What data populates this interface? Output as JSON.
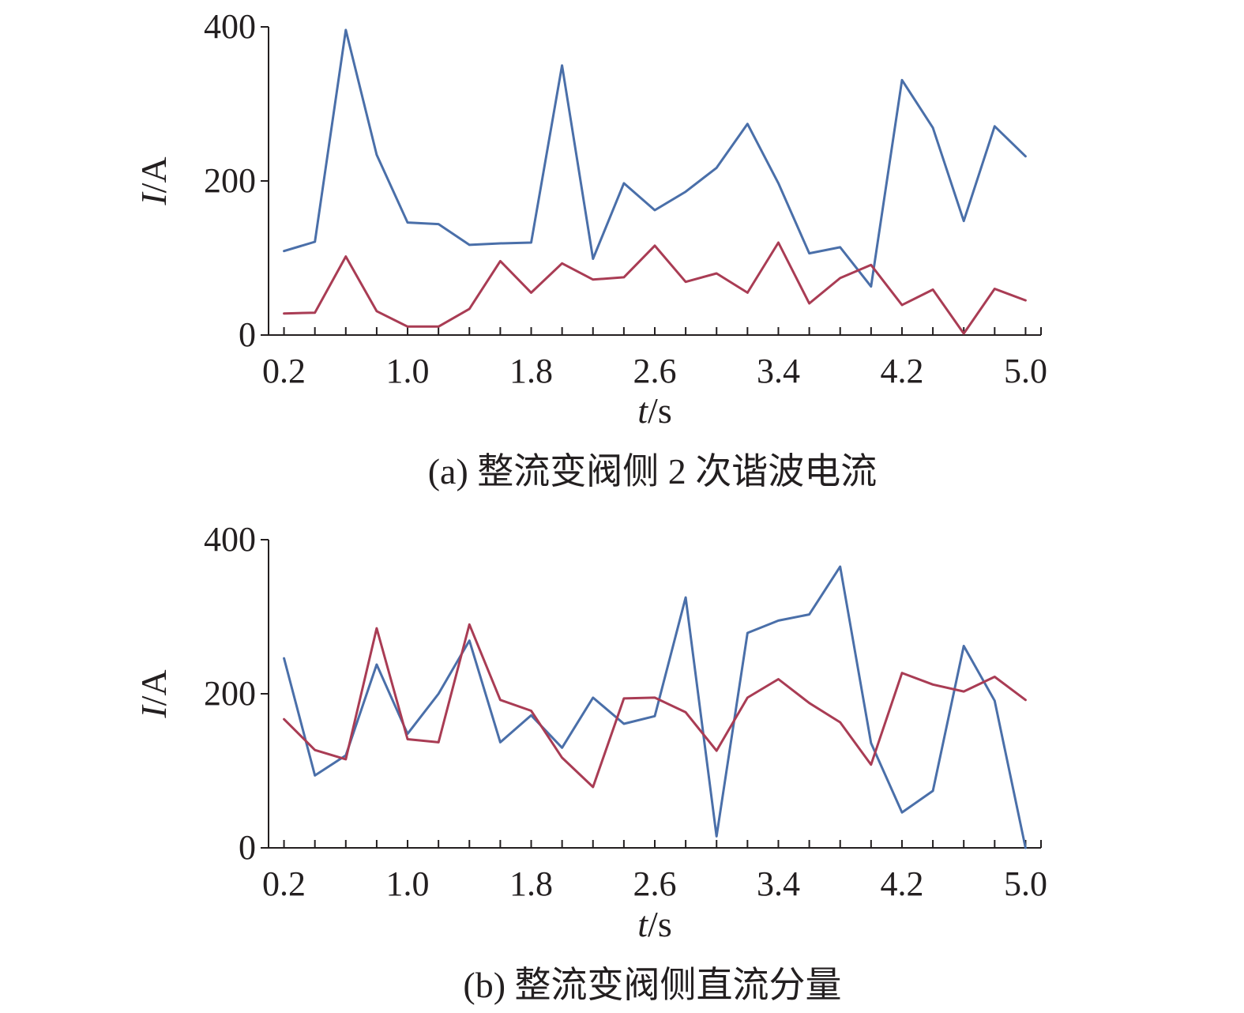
{
  "colors": {
    "series_a": "#4a6fa9",
    "series_b": "#a93c54",
    "axis": "#231f20"
  },
  "chart_data": [
    {
      "type": "line",
      "caption": "(a) 整流变阀侧 2 次谐波电流",
      "ylabel_italic": "I",
      "ylabel_unit": "/A",
      "xlabel_italic": "t",
      "xlabel_unit": "/s",
      "xlim": [
        0.1,
        5.1
      ],
      "ylim": [
        0,
        400
      ],
      "xticks": [
        0.2,
        1.0,
        1.8,
        2.6,
        3.4,
        4.2,
        5.0
      ],
      "xtick_labels": [
        "0.2",
        "1.0",
        "1.8",
        "2.6",
        "3.4",
        "4.2",
        "5.0"
      ],
      "yticks": [
        0,
        200,
        400
      ],
      "ytick_labels": [
        "0",
        "200",
        "400"
      ],
      "x": [
        0.2,
        0.4,
        0.6,
        0.8,
        1.0,
        1.2,
        1.4,
        1.6,
        1.8,
        2.0,
        2.2,
        2.4,
        2.6,
        2.8,
        3.0,
        3.2,
        3.4,
        3.6,
        3.8,
        4.0,
        4.2,
        4.4,
        4.6,
        4.8,
        5.0
      ],
      "series": [
        {
          "color": "#4a6fa9",
          "values": [
            109,
            121,
            396,
            234,
            146,
            144,
            117,
            119,
            120,
            350,
            99,
            197,
            162,
            186,
            217,
            274,
            197,
            106,
            114,
            63,
            331,
            269,
            148,
            271,
            232
          ]
        },
        {
          "color": "#a93c54",
          "values": [
            28,
            29,
            102,
            31,
            11,
            11,
            34,
            96,
            55,
            93,
            72,
            75,
            116,
            69,
            80,
            55,
            120,
            41,
            74,
            91,
            39,
            59,
            2,
            60,
            45
          ]
        }
      ]
    },
    {
      "type": "line",
      "caption": "(b) 整流变阀侧直流分量",
      "ylabel_italic": "I",
      "ylabel_unit": "/A",
      "xlabel_italic": "t",
      "xlabel_unit": "/s",
      "xlim": [
        0.1,
        5.1
      ],
      "ylim": [
        0,
        400
      ],
      "xticks": [
        0.2,
        1.0,
        1.8,
        2.6,
        3.4,
        4.2,
        5.0
      ],
      "xtick_labels": [
        "0.2",
        "1.0",
        "1.8",
        "2.6",
        "3.4",
        "4.2",
        "5.0"
      ],
      "yticks": [
        0,
        200,
        400
      ],
      "ytick_labels": [
        "0",
        "200",
        "400"
      ],
      "x": [
        0.2,
        0.4,
        0.6,
        0.8,
        1.0,
        1.2,
        1.4,
        1.6,
        1.8,
        2.0,
        2.2,
        2.4,
        2.6,
        2.8,
        3.0,
        3.2,
        3.4,
        3.6,
        3.8,
        4.0,
        4.2,
        4.4,
        4.6,
        4.8,
        5.0
      ],
      "series": [
        {
          "color": "#4a6fa9",
          "values": [
            246,
            94,
            120,
            238,
            148,
            200,
            269,
            137,
            172,
            130,
            195,
            161,
            171,
            325,
            15,
            279,
            295,
            303,
            365,
            136,
            46,
            74,
            262,
            191,
            0
          ]
        },
        {
          "color": "#a93c54",
          "values": [
            167,
            127,
            115,
            285,
            141,
            137,
            290,
            192,
            178,
            117,
            79,
            194,
            195,
            176,
            126,
            195,
            219,
            188,
            163,
            108,
            227,
            212,
            203,
            222,
            192
          ]
        }
      ]
    }
  ]
}
